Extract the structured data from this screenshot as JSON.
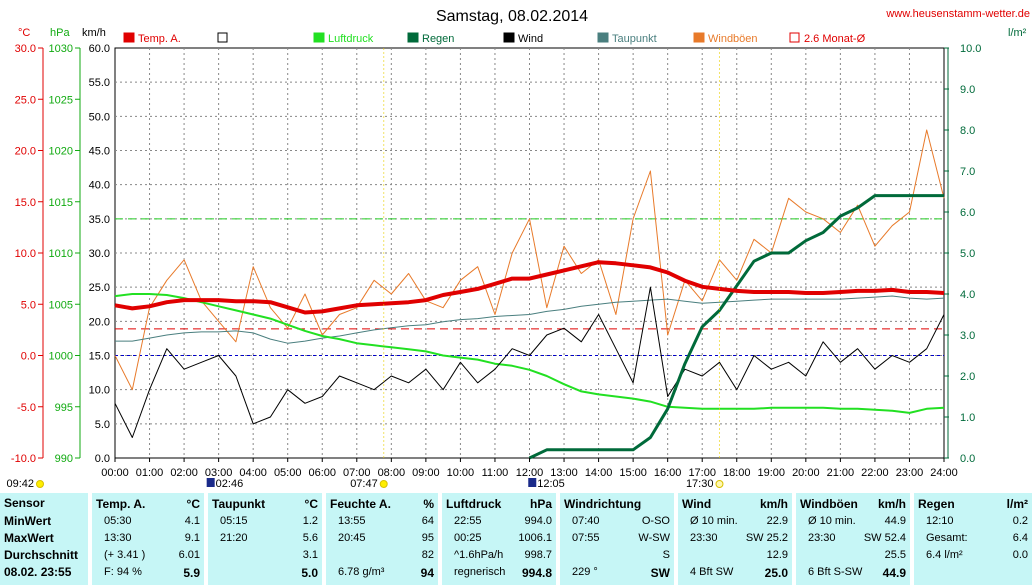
{
  "header": {
    "title": "Samstag, 08.02.2014",
    "website": "www.heusenstamm-wetter.de"
  },
  "legend": [
    {
      "label": "Temp. A.",
      "color": "#e00000",
      "marker": "filled"
    },
    {
      "label": "",
      "color": "#000000",
      "marker": "empty"
    },
    {
      "label": "Luftdruck",
      "color": "#22e022",
      "marker": "filled"
    },
    {
      "label": "Regen",
      "color": "#006a3a",
      "marker": "filled"
    },
    {
      "label": "Wind",
      "color": "#000000",
      "marker": "filled"
    },
    {
      "label": "Taupunkt",
      "color": "#4a7f7f",
      "marker": "filled"
    },
    {
      "label": "Windböen",
      "color": "#e87a2a",
      "marker": "filled"
    },
    {
      "label": "2.6 Monat-Ø",
      "color": "#e00000",
      "marker": "empty"
    }
  ],
  "axes": {
    "temp_unit": "°C",
    "pressure_unit": "hPa",
    "wind_unit": "km/h",
    "rain_unit": "l/m²",
    "temp_ticks": [
      "30.0",
      "25.0",
      "20.0",
      "15.0",
      "10.0",
      "5.0",
      "0.0",
      "-5.0",
      "-10.0"
    ],
    "pressure_ticks": [
      "1030",
      "1025",
      "1020",
      "1015",
      "1010",
      "1005",
      "1000",
      "995",
      "990"
    ],
    "wind_ticks": [
      "60.0",
      "55.0",
      "50.0",
      "45.0",
      "40.0",
      "35.0",
      "30.0",
      "25.0",
      "20.0",
      "15.0",
      "10.0",
      "5.0",
      "0.0"
    ],
    "rain_ticks": [
      "10.0",
      "9.0",
      "8.0",
      "7.0",
      "6.0",
      "5.0",
      "4.0",
      "3.0",
      "2.0",
      "1.0",
      "0.0"
    ],
    "time_ticks": [
      "00:00",
      "01:00",
      "02:00",
      "03:00",
      "04:00",
      "05:00",
      "06:00",
      "07:00",
      "08:00",
      "09:00",
      "10:00",
      "11:00",
      "12:00",
      "13:00",
      "14:00",
      "15:00",
      "16:00",
      "17:00",
      "18:00",
      "19:00",
      "20:00",
      "21:00",
      "22:00",
      "23:00",
      "24:00"
    ]
  },
  "markers": [
    {
      "time": "09:42",
      "kind": "sun-yellow",
      "hour": 0
    },
    {
      "time": "02:46",
      "kind": "moon-dark",
      "hour": 2.77
    },
    {
      "time": "07:47",
      "kind": "sun-yellow",
      "hour": 7.78
    },
    {
      "time": "12:05",
      "kind": "moon-dark",
      "hour": 12.08
    },
    {
      "time": "17:30",
      "kind": "sun-light",
      "hour": 17.5
    }
  ],
  "chart_data": {
    "type": "line",
    "x_hours": [
      0,
      0.5,
      1,
      1.5,
      2,
      2.5,
      3,
      3.5,
      4,
      4.5,
      5,
      5.5,
      6,
      6.5,
      7,
      7.5,
      8,
      8.5,
      9,
      9.5,
      10,
      10.5,
      11,
      11.5,
      12,
      12.5,
      13,
      13.5,
      14,
      14.5,
      15,
      15.5,
      16,
      16.5,
      17,
      17.5,
      18,
      18.5,
      19,
      19.5,
      20,
      20.5,
      21,
      21.5,
      22,
      22.5,
      23,
      23.5,
      24
    ],
    "ylim_temp": [
      -10,
      30
    ],
    "ylim_pressure": [
      990,
      1030
    ],
    "ylim_wind": [
      0,
      60
    ],
    "ylim_rain": [
      0,
      10
    ],
    "series": [
      {
        "name": "Temp. A.",
        "axis": "temp",
        "color": "#e00000",
        "width": 4,
        "values": [
          4.9,
          4.6,
          4.8,
          5.2,
          5.4,
          5.4,
          5.4,
          5.3,
          5.3,
          5.2,
          4.7,
          4.2,
          4.3,
          4.6,
          4.9,
          5.0,
          5.1,
          5.2,
          5.4,
          5.9,
          6.2,
          6.5,
          7.0,
          7.5,
          7.5,
          7.9,
          8.3,
          8.7,
          9.1,
          9.0,
          8.8,
          8.6,
          8.1,
          7.3,
          6.7,
          6.5,
          6.3,
          6.2,
          6.2,
          6.2,
          6.1,
          6.1,
          6.2,
          6.3,
          6.3,
          6.4,
          6.2,
          6.2,
          6.1
        ]
      },
      {
        "name": "Luftdruck",
        "axis": "pressure",
        "color": "#22e022",
        "width": 2,
        "values": [
          1005.8,
          1006.0,
          1006.0,
          1005.9,
          1005.6,
          1005.2,
          1004.8,
          1004.4,
          1004.0,
          1003.6,
          1003.0,
          1002.4,
          1001.9,
          1001.6,
          1001.2,
          1001.0,
          1000.8,
          1000.6,
          1000.4,
          1000.0,
          999.8,
          999.6,
          999.2,
          999.0,
          998.6,
          998.0,
          997.2,
          996.5,
          996.2,
          996.0,
          995.8,
          995.5,
          995.0,
          994.9,
          994.8,
          994.8,
          994.8,
          994.8,
          994.9,
          994.9,
          994.9,
          994.9,
          994.8,
          994.8,
          994.7,
          994.6,
          994.4,
          994.8,
          994.9
        ]
      },
      {
        "name": "Taupunkt",
        "axis": "temp",
        "color": "#4a7f7f",
        "width": 1,
        "values": [
          1.4,
          1.4,
          1.7,
          2.0,
          2.2,
          2.3,
          2.3,
          2.4,
          2.2,
          1.6,
          1.2,
          1.4,
          1.7,
          1.9,
          2.2,
          2.5,
          2.7,
          2.9,
          3.0,
          3.3,
          3.5,
          3.6,
          3.8,
          3.9,
          4.0,
          4.3,
          4.5,
          4.8,
          5.0,
          5.2,
          5.3,
          5.4,
          5.5,
          5.3,
          5.1,
          5.2,
          5.3,
          5.4,
          5.5,
          5.5,
          5.5,
          5.5,
          5.5,
          5.6,
          5.7,
          5.8,
          5.6,
          5.5,
          5.6
        ]
      },
      {
        "name": "Regen",
        "axis": "rain",
        "color": "#006a3a",
        "width": 3,
        "values": [
          null,
          null,
          null,
          null,
          null,
          null,
          null,
          null,
          null,
          null,
          null,
          null,
          null,
          null,
          null,
          null,
          null,
          null,
          null,
          null,
          null,
          null,
          null,
          null,
          0.0,
          0.2,
          0.2,
          0.2,
          0.2,
          0.2,
          0.2,
          0.5,
          1.2,
          2.3,
          3.2,
          3.6,
          4.2,
          4.8,
          5.0,
          5.0,
          5.3,
          5.5,
          5.9,
          6.1,
          6.4,
          6.4,
          6.4,
          6.4,
          6.4
        ]
      },
      {
        "name": "Wind",
        "axis": "wind",
        "color": "#000000",
        "width": 1,
        "values": [
          8,
          3,
          10,
          16,
          13,
          14,
          15,
          12,
          5,
          6,
          10,
          8,
          9,
          12,
          11,
          10,
          12,
          11,
          13,
          10,
          14,
          11,
          13,
          16,
          15,
          18,
          19,
          17,
          21,
          16,
          11,
          25,
          9,
          13,
          12,
          14,
          10,
          15,
          13,
          14,
          12,
          17,
          14,
          16,
          13,
          15,
          14,
          16,
          21
        ]
      },
      {
        "name": "Windböen",
        "axis": "wind",
        "color": "#e87a2a",
        "width": 1,
        "values": [
          15,
          10,
          22,
          26,
          29,
          23,
          20,
          17,
          28,
          22,
          19,
          24,
          18,
          21,
          22,
          26,
          24,
          27,
          23,
          22,
          26,
          28,
          21,
          30,
          35,
          22,
          31,
          27,
          29,
          21,
          35,
          42,
          18,
          26,
          23,
          29,
          26,
          32,
          30,
          38,
          36,
          35,
          33,
          37,
          31,
          34,
          36,
          48,
          38
        ]
      },
      {
        "name": "Temp. A. Ø",
        "axis": "temp",
        "color": "#e00000",
        "width": 1,
        "dash": "8,5",
        "values": [
          2.6,
          2.6
        ]
      },
      {
        "name": "Wind Ø",
        "axis": "wind",
        "color": "#0000cc",
        "width": 1,
        "dash": "3,3",
        "values": [
          15,
          15
        ]
      },
      {
        "name": "Windböen Ø",
        "axis": "wind",
        "color": "#22cc22",
        "width": 1,
        "dash": "8,5",
        "values": [
          35,
          35
        ]
      }
    ]
  },
  "table": {
    "row_labels": [
      "Sensor",
      "MinWert",
      "MaxWert",
      "Durchschnitt",
      "08.02. 23:55"
    ],
    "columns": [
      {
        "title": "Temp. A.",
        "unit": "°C",
        "rows": [
          [
            "05:30",
            "4.1"
          ],
          [
            "13:30",
            "9.1"
          ],
          [
            "(+ 3.41 )",
            "6.01"
          ],
          [
            "F: 94 %",
            "5.9"
          ]
        ]
      },
      {
        "title": "Taupunkt",
        "unit": "°C",
        "rows": [
          [
            "05:15",
            "1.2"
          ],
          [
            "21:20",
            "5.6"
          ],
          [
            "",
            "3.1"
          ],
          [
            "",
            "5.0"
          ]
        ]
      },
      {
        "title": "Feuchte A.",
        "unit": "%",
        "rows": [
          [
            "13:55",
            "64"
          ],
          [
            "20:45",
            "95"
          ],
          [
            "",
            "82"
          ],
          [
            "6.78 g/m³",
            "94"
          ]
        ]
      },
      {
        "title": "Luftdruck",
        "unit": "hPa",
        "rows": [
          [
            "22:55",
            "994.0"
          ],
          [
            "00:25",
            "1006.1"
          ],
          [
            "^1.6hPa/h",
            "998.7"
          ],
          [
            "regnerisch",
            "994.8"
          ]
        ]
      },
      {
        "title": "Windrichtung",
        "unit": "",
        "rows": [
          [
            "07:40",
            "O-SO"
          ],
          [
            "07:55",
            "W-SW"
          ],
          [
            "",
            "S"
          ],
          [
            "229 °",
            "SW"
          ]
        ]
      },
      {
        "title": "Wind",
        "unit": "km/h",
        "rows": [
          [
            "Ø 10 min.",
            "22.9"
          ],
          [
            "23:30",
            "SW 25.2"
          ],
          [
            "",
            "12.9"
          ],
          [
            "4 Bft SW",
            "25.0"
          ]
        ]
      },
      {
        "title": "Windböen",
        "unit": "km/h",
        "rows": [
          [
            "Ø 10 min.",
            "44.9"
          ],
          [
            "23:30",
            "SW 52.4"
          ],
          [
            "",
            "25.5"
          ],
          [
            "6 Bft S-SW",
            "44.9"
          ]
        ]
      },
      {
        "title": "Regen",
        "unit": "l/m²",
        "rows": [
          [
            "12:10",
            "0.2"
          ],
          [
            "Gesamt:",
            "6.4"
          ],
          [
            "6.4 l/m²",
            "0.0"
          ],
          [
            "",
            ""
          ]
        ]
      }
    ]
  }
}
